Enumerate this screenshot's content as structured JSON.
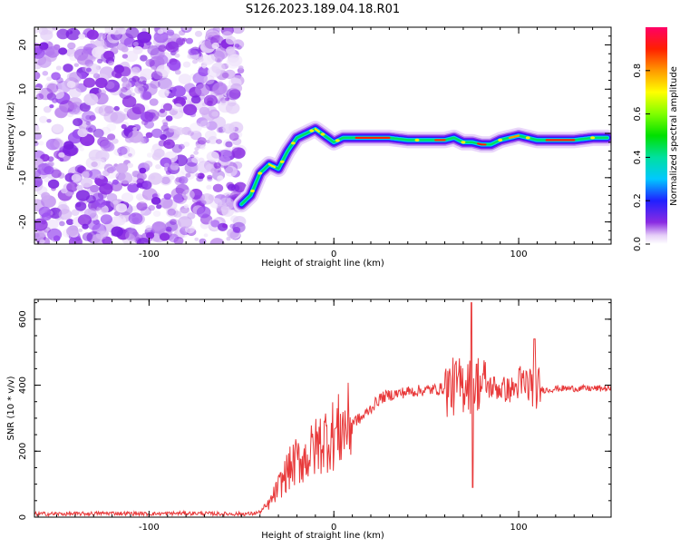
{
  "figure_title": "S126.2023.189.04.18.R01",
  "chart_data": [
    {
      "type": "heatmap",
      "title": "",
      "xlabel": "Height of straight line (km)",
      "ylabel": "Frequency (Hz)",
      "xlim": [
        -162,
        150
      ],
      "ylim": [
        -25,
        24
      ],
      "x_ticks": [
        -100,
        0,
        100
      ],
      "y_ticks": [
        -20,
        -10,
        0,
        10,
        20
      ],
      "colorbar": {
        "label": "Normalized spectral amplitude",
        "range": [
          0,
          1
        ],
        "ticks": [
          "0.0",
          "0.2",
          "0.4",
          "0.6",
          "0.8"
        ]
      },
      "ridge": {
        "x": [
          -50,
          -45,
          -40,
          -35,
          -30,
          -25,
          -20,
          -15,
          -10,
          -5,
          0,
          5,
          10,
          20,
          30,
          40,
          50,
          60,
          65,
          70,
          75,
          80,
          85,
          90,
          95,
          100,
          105,
          110,
          120,
          130,
          140,
          148
        ],
        "freq": [
          -16,
          -14,
          -9,
          -7,
          -8,
          -4,
          -1,
          0,
          1,
          -0.5,
          -2,
          -1,
          -1,
          -1,
          -1,
          -1.5,
          -1.5,
          -1.5,
          -1,
          -2,
          -2,
          -2.5,
          -2.5,
          -1.5,
          -1,
          -0.5,
          -1,
          -1.5,
          -1.5,
          -1.5,
          -1,
          -1
        ]
      },
      "noise_region_x": [
        -162,
        -50
      ]
    },
    {
      "type": "line",
      "title": "",
      "xlabel": "Height of straight line (km)",
      "ylabel": "SNR (10 * v/v)",
      "xlim": [
        -162,
        150
      ],
      "ylim": [
        0,
        660
      ],
      "x_ticks": [
        -100,
        0,
        100
      ],
      "y_ticks": [
        0,
        200,
        400,
        600
      ],
      "series": [
        {
          "color": "#e8393a",
          "x": [
            -162,
            -140,
            -120,
            -100,
            -80,
            -60,
            -45,
            -40,
            -35,
            -30,
            -25,
            -20,
            -15,
            -10,
            -5,
            0,
            5,
            10,
            15,
            20,
            25,
            30,
            40,
            50,
            60,
            65,
            70,
            72,
            75,
            78,
            80,
            85,
            90,
            95,
            100,
            105,
            108,
            110,
            115,
            120,
            130,
            140,
            150
          ],
          "values": [
            10,
            10,
            12,
            10,
            12,
            10,
            10,
            15,
            40,
            90,
            140,
            170,
            180,
            210,
            240,
            250,
            270,
            290,
            300,
            330,
            360,
            370,
            380,
            385,
            390,
            395,
            400,
            420,
            390,
            410,
            400,
            395,
            390,
            385,
            395,
            400,
            405,
            390,
            385,
            390,
            390,
            390,
            390
          ]
        }
      ],
      "annotations": [
        {
          "x": 74,
          "value": 650,
          "note": "spike"
        },
        {
          "x": 74,
          "value": 90,
          "note": "dip"
        }
      ]
    }
  ]
}
